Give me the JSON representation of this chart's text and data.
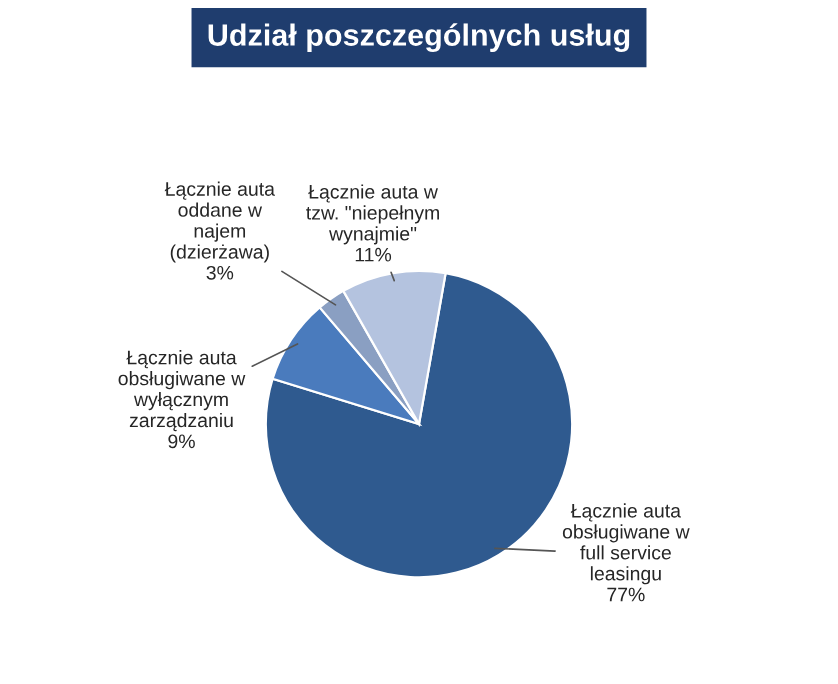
{
  "chart_data": {
    "type": "pie",
    "title": "Udział poszczególnych usług",
    "categories": [
      "Łącznie auta\nobsługiwane w\nfull service\nleasingu",
      "Łącznie auta\nobsługiwane w\nwyłącznym\nzarządzaniu",
      "Łącznie auta\noddane w\nnajem\n(dzierżawa)",
      "Łącznie auta w\ntzw. \"niepełnym\nwynajmie\""
    ],
    "values": [
      77,
      9,
      3,
      11
    ],
    "value_labels": [
      "77%",
      "9%",
      "3%",
      "11%"
    ],
    "colors": [
      "#2f5a8f",
      "#4a7bbd",
      "#8a9fc2",
      "#b4c3df"
    ],
    "legend": false
  }
}
